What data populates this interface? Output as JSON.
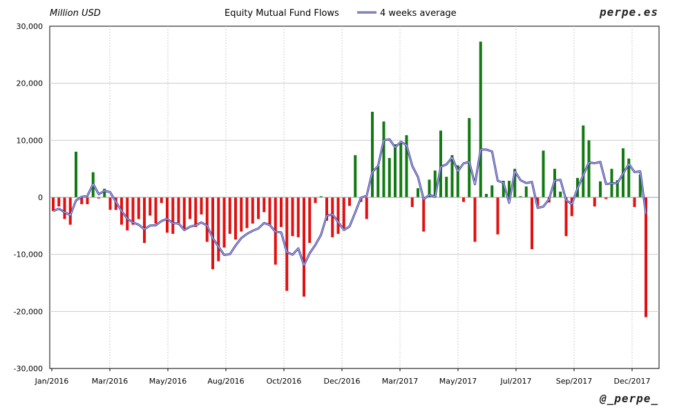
{
  "chart_data": {
    "type": "bar",
    "title": "Equity Mutual Fund Flows",
    "ylabel": "Million USD",
    "legend": [
      "4 weeks average"
    ],
    "watermark_top": "perpe.es",
    "watermark_bottom": "@_perpe_",
    "ylim": [
      -30000,
      30000
    ],
    "yticks": [
      30000,
      20000,
      10000,
      0,
      -10000,
      -20000,
      -30000
    ],
    "ytick_labels": [
      "30,000",
      "20,000",
      "10,000",
      "0",
      "-10,000",
      "-20,000",
      "-30,000"
    ],
    "xtick_labels": [
      "Jan/2016",
      "Mar/2016",
      "May/2016",
      "Aug/2016",
      "Oct/2016",
      "Dec/2016",
      "Mar/2017",
      "May/2017",
      "Jul/2017",
      "Sep/2017",
      "Dec/2017"
    ],
    "colors": {
      "positive": "#127a12",
      "negative": "#e21010",
      "average": "#3a3a9a",
      "grid": "#cccccc"
    },
    "weekly_flows": [
      -2400,
      -1600,
      -3800,
      -4800,
      8000,
      -1200,
      -1200,
      4400,
      -200,
      1500,
      -2200,
      -2200,
      -4800,
      -5800,
      -4800,
      -3800,
      -8000,
      -3200,
      -4600,
      -1000,
      -6200,
      -6400,
      -4800,
      -5600,
      -3800,
      -5200,
      -3000,
      -7800,
      -12600,
      -11200,
      -8800,
      -6400,
      -7400,
      -6000,
      -5400,
      -4600,
      -3800,
      -2600,
      -5000,
      -11800,
      -5200,
      -16400,
      -6800,
      -7000,
      -17400,
      -8000,
      -1000,
      200,
      -4100,
      -7000,
      -6400,
      -5400,
      -1500,
      7400,
      -800,
      -3800,
      15000,
      5500,
      13300,
      6900,
      9300,
      9500,
      10900,
      -1700,
      1600,
      -6000,
      3100,
      4700,
      11700,
      3600,
      7400,
      5600,
      -800,
      13900,
      -7800,
      27300,
      600,
      2100,
      -6500,
      2900,
      2900,
      5000,
      200,
      1900,
      -9100,
      -1500,
      8200,
      -900,
      5000,
      1000,
      -6800,
      -3300,
      3400,
      12600,
      10000,
      -1600,
      2800,
      -300,
      5000,
      3000,
      8600,
      6800,
      -1700,
      4000,
      -21000
    ],
    "avg_4wk": [
      -2400,
      -2000,
      -2600,
      -3150,
      -550,
      100,
      250,
      2350,
      550,
      1150,
      900,
      -800,
      -2400,
      -3750,
      -4400,
      -4800,
      -5600,
      -4950,
      -4900,
      -4150,
      -3750,
      -4550,
      -4550,
      -5750,
      -5150,
      -4900,
      -4400,
      -4950,
      -7150,
      -8650,
      -10100,
      -9950,
      -8450,
      -7150,
      -6400,
      -5850,
      -5450,
      -4500,
      -4850,
      -6050,
      -6150,
      -9600,
      -10050,
      -8950,
      -11900,
      -9800,
      -8350,
      -6550,
      -3225,
      -2975,
      -4325,
      -5725,
      -5100,
      -2625,
      -75,
      275,
      4450,
      5475,
      10000,
      10175,
      8750,
      9750,
      9150,
      5500,
      3575,
      -350,
      450,
      100,
      5350,
      5775,
      7000,
      4575,
      5950,
      6225,
      2300,
      8375,
      8375,
      8050,
      2900,
      2550,
      -950,
      4575,
      3000,
      2500,
      2700,
      -1850,
      -1625,
      -325,
      3000,
      3075,
      -500,
      -1200,
      1550,
      3875,
      6125,
      5975,
      6200,
      2325,
      2450,
      2500,
      4175,
      5825,
      4425,
      4550,
      -2925
    ]
  }
}
